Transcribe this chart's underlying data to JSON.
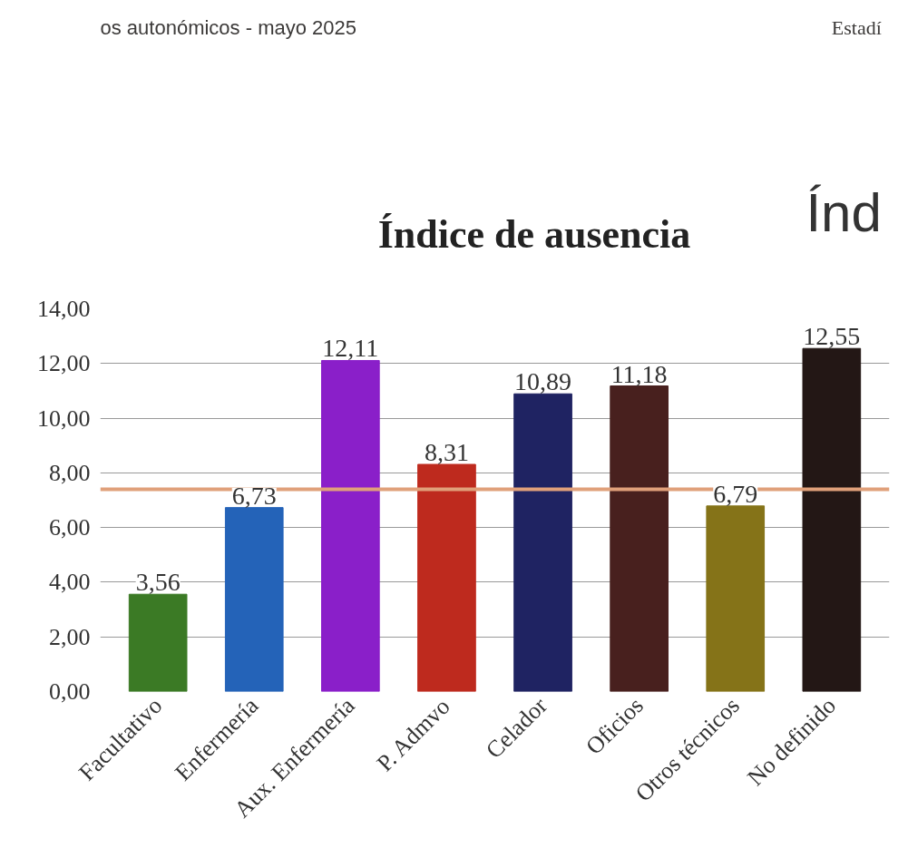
{
  "chart_data": {
    "type": "bar",
    "title": "Índice de ausencia",
    "annotations": [
      "os autonómicos - mayo 2025",
      "Estadí",
      "Índ"
    ],
    "categories": [
      "Facultativo",
      "Enfermería",
      "Aux. Enfermería",
      "P. Admvo",
      "Celador",
      "Oficios",
      "Otros técnicos",
      "No definido"
    ],
    "values": [
      3.56,
      6.73,
      12.11,
      8.31,
      10.89,
      11.18,
      6.79,
      12.55
    ],
    "colors": [
      "#3b7a25",
      "#2463b8",
      "#8a1fc9",
      "#be2a1e",
      "#1f2362",
      "#48201e",
      "#857318",
      "#231715"
    ],
    "value_labels": [
      "3,56",
      "6,73",
      "12,11",
      "8,31",
      "10,89",
      "11,18",
      "6,79",
      "12,55"
    ],
    "ylim": [
      0,
      14
    ],
    "yticks": [
      {
        "value": 0,
        "label": "0,00"
      },
      {
        "value": 2,
        "label": "2,00"
      },
      {
        "value": 4,
        "label": "4,00"
      },
      {
        "value": 6,
        "label": "6,00"
      },
      {
        "value": 8,
        "label": "8,00"
      },
      {
        "value": 10,
        "label": "10,00"
      },
      {
        "value": 12,
        "label": "12,00"
      },
      {
        "value": 14,
        "label": "14,00"
      }
    ],
    "ref_lines": [
      {
        "axis": "y",
        "value": 7.4,
        "label": null,
        "color": "#e0a07a"
      }
    ],
    "grid": "y",
    "legend": false
  }
}
